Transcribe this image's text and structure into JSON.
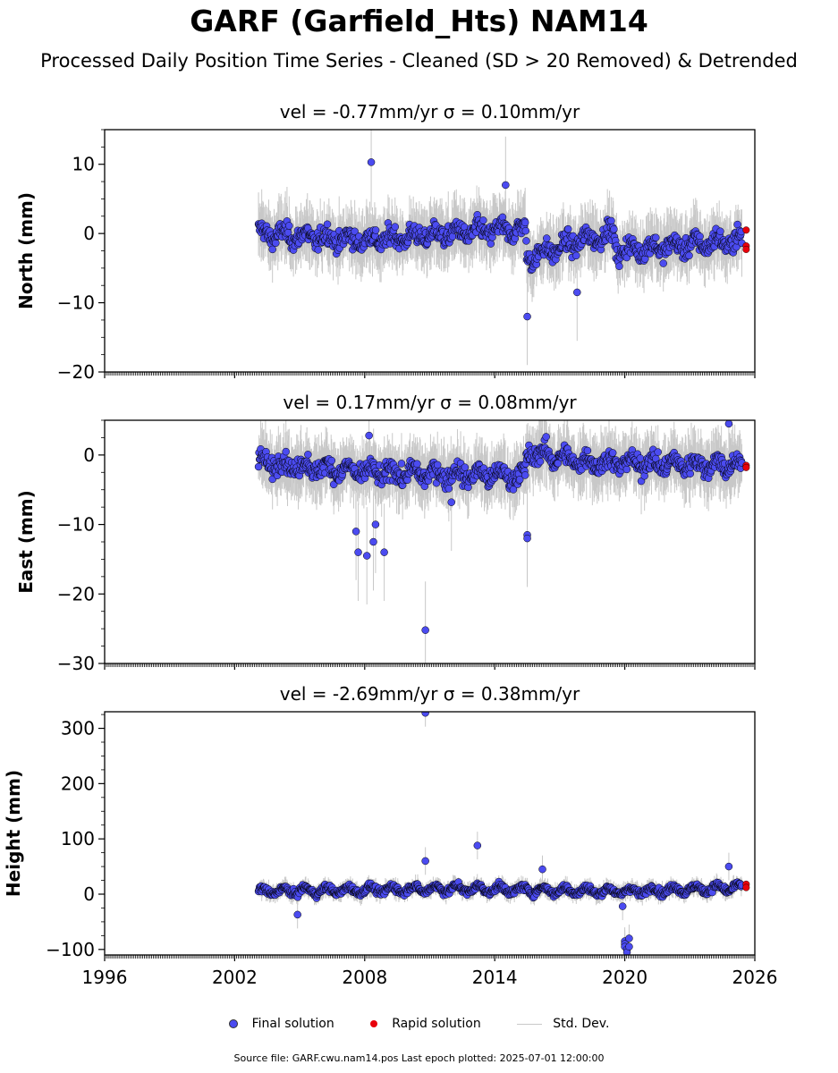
{
  "header": {
    "title": "GARF (Garfield_Hts) NAM14",
    "subtitle": "Processed Daily Position Time Series - Cleaned (SD > 20 Removed) & Detrended"
  },
  "footer": {
    "text": "Source file: GARF.cwu.nam14.pos  Last epoch plotted: 2025-07-01 12:00:00"
  },
  "legend": [
    {
      "label": "Final solution",
      "type": "dot",
      "color": "#4b4bf0"
    },
    {
      "label": "Rapid solution",
      "type": "dot",
      "color": "#e8000b"
    },
    {
      "label": "Std. Dev.",
      "type": "line",
      "color": "#c8c8c8"
    }
  ],
  "colors": {
    "final": "#4b4bf0",
    "rapid": "#e8000b",
    "stddev": "#c8c8c8",
    "edge": "#000000"
  },
  "chart_data": [
    {
      "type": "scatter",
      "title": "vel = -0.77mm/yr   σ = 0.10mm/yr",
      "ylabel": "North (mm)",
      "xlim": [
        1996,
        2026
      ],
      "ylim": [
        -20,
        15
      ],
      "yticks": [
        -20,
        -10,
        0,
        10
      ],
      "ytick_labels": [
        "−20",
        "−10",
        "0",
        "10"
      ],
      "series": [
        {
          "name": "Final solution",
          "x_start": 2003.1,
          "x_end": 2025.4,
          "level_points": [
            [
              2003.1,
              0
            ],
            [
              2008,
              -1
            ],
            [
              2014,
              0.5
            ],
            [
              2015.4,
              0.5
            ],
            [
              2015.5,
              -3.5
            ],
            [
              2018,
              -1
            ],
            [
              2019.5,
              0
            ],
            [
              2019.6,
              -2.5
            ],
            [
              2025.4,
              -1
            ]
          ],
          "outliers": [
            [
              2008.3,
              10.3
            ],
            [
              2015.5,
              -12
            ],
            [
              2017.8,
              -8.5
            ],
            [
              2014.5,
              7
            ]
          ]
        },
        {
          "name": "Rapid solution",
          "points": [
            [
              2025.6,
              0.5
            ],
            [
              2025.6,
              -1.8
            ],
            [
              2025.6,
              -2.3
            ]
          ]
        }
      ]
    },
    {
      "type": "scatter",
      "title": "vel = 0.17mm/yr   σ = 0.08mm/yr",
      "ylabel": "East (mm)",
      "xlim": [
        1996,
        2026
      ],
      "ylim": [
        -30,
        5
      ],
      "yticks": [
        -30,
        -20,
        -10,
        0
      ],
      "ytick_labels": [
        "−30",
        "−20",
        "−10",
        "0"
      ],
      "series": [
        {
          "name": "Final solution",
          "x_start": 2003.1,
          "x_end": 2025.4,
          "level_points": [
            [
              2003.1,
              -1
            ],
            [
              2008,
              -2.5
            ],
            [
              2015.4,
              -3
            ],
            [
              2015.5,
              0.5
            ],
            [
              2018,
              -1
            ],
            [
              2025.4,
              -1.5
            ]
          ],
          "outliers": [
            [
              2007.6,
              -11
            ],
            [
              2007.7,
              -14
            ],
            [
              2008.1,
              -14.5
            ],
            [
              2008.4,
              -12.5
            ],
            [
              2008.5,
              -10
            ],
            [
              2008.9,
              -14
            ],
            [
              2010.8,
              -25.2
            ],
            [
              2015.5,
              -11.5
            ],
            [
              2015.5,
              -12
            ],
            [
              2024.8,
              4.5
            ],
            [
              2008.2,
              2.8
            ],
            [
              2012.0,
              -6.8
            ]
          ]
        },
        {
          "name": "Rapid solution",
          "points": [
            [
              2025.6,
              -1.5
            ],
            [
              2025.6,
              -1.8
            ]
          ]
        }
      ]
    },
    {
      "type": "scatter",
      "title": "vel = -2.69mm/yr   σ = 0.38mm/yr",
      "ylabel": "Height (mm)",
      "xlim": [
        1996,
        2026
      ],
      "ylim": [
        -110,
        330
      ],
      "yticks": [
        -100,
        0,
        100,
        200,
        300
      ],
      "ytick_labels": [
        "−100",
        "0",
        "100",
        "200",
        "300"
      ],
      "series": [
        {
          "name": "Final solution",
          "x_start": 2003.1,
          "x_end": 2025.4,
          "level_points": [
            [
              2003.1,
              5
            ],
            [
              2012,
              10
            ],
            [
              2020,
              5
            ],
            [
              2025.4,
              12
            ]
          ],
          "outliers": [
            [
              2010.8,
              328
            ],
            [
              2010.8,
              60
            ],
            [
              2013.2,
              88
            ],
            [
              2016.2,
              45
            ],
            [
              2004.9,
              -37
            ],
            [
              2024.8,
              50
            ],
            [
              2020.0,
              -85
            ],
            [
              2020.0,
              -90
            ],
            [
              2020.0,
              -95
            ],
            [
              2020.1,
              -100
            ],
            [
              2020.1,
              -105
            ],
            [
              2020.2,
              -80
            ],
            [
              2020.2,
              -95
            ],
            [
              2019.9,
              -22
            ]
          ]
        },
        {
          "name": "Rapid solution",
          "points": [
            [
              2025.6,
              18
            ],
            [
              2025.6,
              12
            ]
          ]
        }
      ]
    }
  ],
  "x_axis": {
    "ticks": [
      1996,
      2002,
      2008,
      2014,
      2020,
      2026
    ],
    "tick_labels": [
      "1996",
      "2002",
      "2008",
      "2014",
      "2020",
      "2026"
    ]
  }
}
